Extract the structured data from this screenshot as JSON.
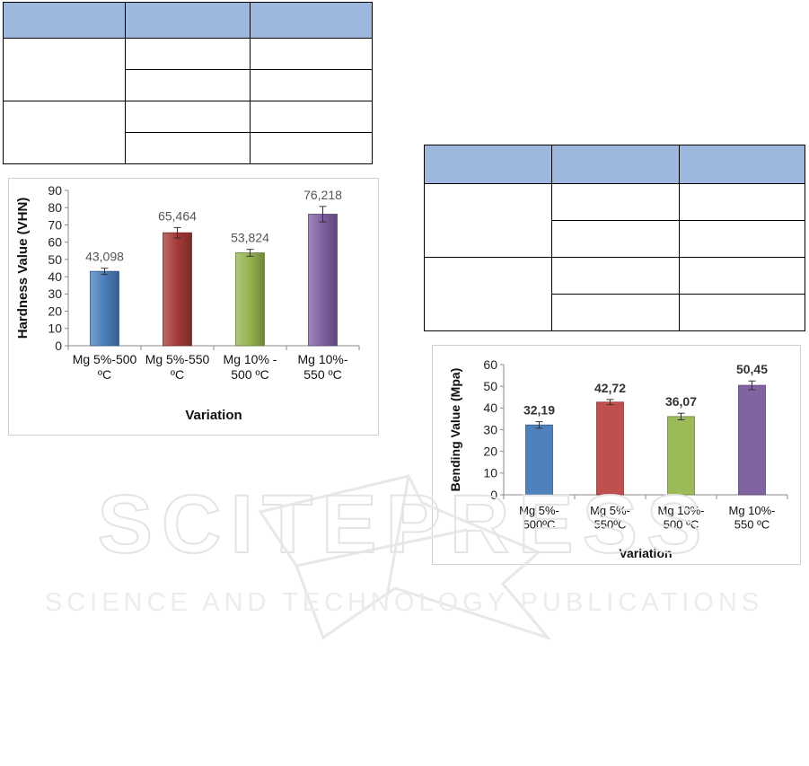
{
  "tables": [],
  "chart_data": [
    {
      "type": "bar",
      "categories": [
        "Mg 5%-500 ºC",
        "Mg 5%-550 ºC",
        "Mg 10% - 500 ºC",
        "Mg 10%-550 ºC"
      ],
      "category_lines": [
        [
          "Mg 5%-500",
          "ºC"
        ],
        [
          "Mg 5%-550",
          "ºC"
        ],
        [
          "Mg 10% -",
          "500 ºC"
        ],
        [
          "Mg 10%-",
          "550 ºC"
        ]
      ],
      "values": [
        43.098,
        65.464,
        53.824,
        76.218
      ],
      "data_labels": [
        "43,098",
        "65,464",
        "53,824",
        "76,218"
      ],
      "errors": [
        1.8,
        3.0,
        2.0,
        4.5
      ],
      "colors": [
        "#4a7ebb",
        "#a33a38",
        "#93b34f",
        "#7d60a0"
      ],
      "title": "",
      "xlabel": "Variation",
      "ylabel": "Hardness Value (VHN)",
      "ylim": [
        0,
        90
      ],
      "yticks": [
        0,
        10,
        20,
        30,
        40,
        50,
        60,
        70,
        80,
        90
      ],
      "grid": false,
      "legend": "none"
    },
    {
      "type": "bar",
      "categories": [
        "Mg 5%- 500ºC",
        "Mg 5%- 550ºC",
        "Mg 10%- 500 ºC",
        "Mg 10%- 550 ºC"
      ],
      "category_lines": [
        [
          "Mg 5%-",
          "500ºC"
        ],
        [
          "Mg 5%-",
          "550ºC"
        ],
        [
          "Mg 10%-",
          "500 ºC"
        ],
        [
          "Mg 10%-",
          "550 ºC"
        ]
      ],
      "values": [
        32.19,
        42.72,
        36.07,
        50.45
      ],
      "data_labels": [
        "32,19",
        "42,72",
        "36,07",
        "50,45"
      ],
      "errors": [
        1.5,
        1.2,
        1.5,
        2.0
      ],
      "colors": [
        "#4f81bd",
        "#c0504d",
        "#9bbb59",
        "#8064a2"
      ],
      "title": "",
      "xlabel": "Variation",
      "ylabel": "Bending Value (Mpa)",
      "ylim": [
        0,
        60
      ],
      "yticks": [
        0,
        10,
        20,
        30,
        40,
        50,
        60
      ],
      "grid": false,
      "legend": "none"
    }
  ]
}
